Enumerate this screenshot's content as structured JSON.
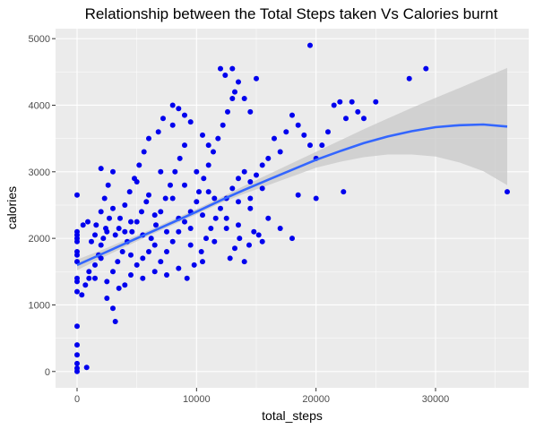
{
  "chart_data": {
    "type": "scatter",
    "title": "Relationship between the Total Steps taken Vs Calories burnt",
    "xlabel": "total_steps",
    "ylabel": "calories",
    "xlim": [
      -1800,
      37800
    ],
    "ylim": [
      -245,
      5150
    ],
    "xticks": [
      0,
      10000,
      20000,
      30000
    ],
    "xtick_labels": [
      "0",
      "10000",
      "20000",
      "30000"
    ],
    "yticks": [
      0,
      1000,
      2000,
      3000,
      4000,
      5000
    ],
    "ytick_labels": [
      "0",
      "1000",
      "2000",
      "3000",
      "4000",
      "5000"
    ],
    "grid": true,
    "legend": "none",
    "colors": {
      "panel": "#ebebeb",
      "grid_major": "#ffffff",
      "points": "#0000ee",
      "smooth_line": "#3366ff",
      "confidence_band": "#c8c8c8"
    },
    "points": [
      [
        0,
        0
      ],
      [
        0,
        50
      ],
      [
        0,
        120
      ],
      [
        0,
        250
      ],
      [
        0,
        400
      ],
      [
        0,
        680
      ],
      [
        0,
        1200
      ],
      [
        0,
        1350
      ],
      [
        0,
        1400
      ],
      [
        0,
        1650
      ],
      [
        0,
        1750
      ],
      [
        0,
        1800
      ],
      [
        0,
        1950
      ],
      [
        0,
        2000
      ],
      [
        0,
        2050
      ],
      [
        0,
        2100
      ],
      [
        0,
        2650
      ],
      [
        800,
        60
      ],
      [
        400,
        1150
      ],
      [
        700,
        1300
      ],
      [
        1000,
        1400
      ],
      [
        1500,
        1600
      ],
      [
        1800,
        1750
      ],
      [
        2000,
        1900
      ],
      [
        2200,
        2000
      ],
      [
        2400,
        2150
      ],
      [
        2700,
        2300
      ],
      [
        500,
        2200
      ],
      [
        900,
        2250
      ],
      [
        1200,
        1950
      ],
      [
        1600,
        2200
      ],
      [
        2000,
        2400
      ],
      [
        2300,
        2600
      ],
      [
        2600,
        2800
      ],
      [
        3000,
        3000
      ],
      [
        2000,
        3050
      ],
      [
        3000,
        1500
      ],
      [
        3400,
        1650
      ],
      [
        3800,
        1800
      ],
      [
        4200,
        1950
      ],
      [
        4600,
        2100
      ],
      [
        5000,
        2250
      ],
      [
        5400,
        2400
      ],
      [
        5800,
        2550
      ],
      [
        3200,
        2050
      ],
      [
        3600,
        2300
      ],
      [
        4000,
        2500
      ],
      [
        4400,
        2700
      ],
      [
        4800,
        2900
      ],
      [
        5200,
        3100
      ],
      [
        5600,
        3300
      ],
      [
        6000,
        3500
      ],
      [
        2500,
        1100
      ],
      [
        3000,
        950
      ],
      [
        3200,
        750
      ],
      [
        4000,
        1300
      ],
      [
        4500,
        1450
      ],
      [
        5000,
        1600
      ],
      [
        5500,
        1700
      ],
      [
        6000,
        1800
      ],
      [
        6200,
        2000
      ],
      [
        6600,
        2200
      ],
      [
        7000,
        2400
      ],
      [
        7400,
        2600
      ],
      [
        7800,
        2800
      ],
      [
        8200,
        3000
      ],
      [
        8600,
        3200
      ],
      [
        9000,
        3400
      ],
      [
        6500,
        1500
      ],
      [
        7000,
        1650
      ],
      [
        7500,
        1800
      ],
      [
        8000,
        1950
      ],
      [
        8500,
        2100
      ],
      [
        9000,
        2250
      ],
      [
        9500,
        2400
      ],
      [
        10000,
        2550
      ],
      [
        6800,
        3600
      ],
      [
        7200,
        3800
      ],
      [
        8000,
        3700
      ],
      [
        8500,
        3950
      ],
      [
        9000,
        3850
      ],
      [
        9500,
        3750
      ],
      [
        10500,
        3550
      ],
      [
        11000,
        3400
      ],
      [
        8000,
        4000
      ],
      [
        9200,
        1400
      ],
      [
        9800,
        1600
      ],
      [
        10400,
        1800
      ],
      [
        10800,
        2000
      ],
      [
        11200,
        2150
      ],
      [
        11600,
        2300
      ],
      [
        12000,
        2450
      ],
      [
        10200,
        2700
      ],
      [
        10600,
        2900
      ],
      [
        11000,
        3100
      ],
      [
        11400,
        3300
      ],
      [
        11800,
        3500
      ],
      [
        12200,
        3700
      ],
      [
        12600,
        3900
      ],
      [
        13000,
        4100
      ],
      [
        12000,
        4550
      ],
      [
        12400,
        4450
      ],
      [
        13000,
        4550
      ],
      [
        13200,
        4200
      ],
      [
        13500,
        4350
      ],
      [
        14000,
        4100
      ],
      [
        15000,
        4400
      ],
      [
        14500,
        3900
      ],
      [
        12500,
        2600
      ],
      [
        13000,
        2750
      ],
      [
        13500,
        2900
      ],
      [
        14000,
        3000
      ],
      [
        14500,
        2850
      ],
      [
        15000,
        2950
      ],
      [
        15500,
        3100
      ],
      [
        16000,
        3200
      ],
      [
        12800,
        1700
      ],
      [
        13200,
        1850
      ],
      [
        13600,
        2000
      ],
      [
        14000,
        1650
      ],
      [
        14400,
        1900
      ],
      [
        14800,
        2100
      ],
      [
        15200,
        2050
      ],
      [
        15500,
        1950
      ],
      [
        16500,
        3500
      ],
      [
        17000,
        3300
      ],
      [
        17500,
        3600
      ],
      [
        18000,
        3850
      ],
      [
        18500,
        3700
      ],
      [
        19000,
        3550
      ],
      [
        19500,
        3400
      ],
      [
        20000,
        3200
      ],
      [
        16000,
        2300
      ],
      [
        17000,
        2150
      ],
      [
        18000,
        2000
      ],
      [
        18500,
        2650
      ],
      [
        19500,
        4900
      ],
      [
        20000,
        2600
      ],
      [
        20500,
        3400
      ],
      [
        21000,
        3600
      ],
      [
        21500,
        4000
      ],
      [
        22000,
        4050
      ],
      [
        22500,
        3800
      ],
      [
        22300,
        2700
      ],
      [
        23000,
        4050
      ],
      [
        23500,
        3900
      ],
      [
        24000,
        3800
      ],
      [
        25000,
        4050
      ],
      [
        27800,
        4400
      ],
      [
        29200,
        4550
      ],
      [
        36000,
        2700
      ],
      [
        1500,
        2050
      ],
      [
        2500,
        2100
      ],
      [
        3500,
        2150
      ],
      [
        4500,
        2250
      ],
      [
        5500,
        2050
      ],
      [
        6500,
        2350
      ],
      [
        7500,
        2100
      ],
      [
        8500,
        2300
      ],
      [
        9500,
        2150
      ],
      [
        10500,
        2350
      ],
      [
        11500,
        2600
      ],
      [
        12500,
        2300
      ],
      [
        13500,
        2550
      ],
      [
        14500,
        2450
      ],
      [
        7000,
        3000
      ],
      [
        8000,
        2600
      ],
      [
        9000,
        2800
      ],
      [
        10000,
        3000
      ],
      [
        11000,
        2700
      ],
      [
        6000,
        2650
      ],
      [
        5000,
        2850
      ],
      [
        4000,
        2100
      ],
      [
        3000,
        2450
      ],
      [
        2000,
        1700
      ],
      [
        1000,
        1500
      ],
      [
        1500,
        1400
      ],
      [
        2500,
        1350
      ],
      [
        3500,
        1250
      ],
      [
        4500,
        1750
      ],
      [
        5500,
        1400
      ],
      [
        6500,
        1900
      ],
      [
        7500,
        1450
      ],
      [
        8500,
        1550
      ],
      [
        9500,
        1900
      ],
      [
        10500,
        1650
      ],
      [
        11500,
        1950
      ],
      [
        12500,
        2150
      ],
      [
        13500,
        2200
      ],
      [
        14500,
        2600
      ],
      [
        15500,
        2750
      ]
    ],
    "smooth_line": {
      "x": [
        0,
        2000,
        4000,
        6000,
        8000,
        10000,
        12000,
        14000,
        16000,
        18000,
        20000,
        22000,
        24000,
        26000,
        28000,
        30000,
        32000,
        34000,
        36000
      ],
      "y": [
        1600,
        1760,
        1920,
        2080,
        2240,
        2400,
        2570,
        2730,
        2880,
        3030,
        3180,
        3310,
        3430,
        3530,
        3610,
        3670,
        3700,
        3710,
        3680
      ],
      "band_upper": [
        1680,
        1820,
        1970,
        2120,
        2280,
        2440,
        2610,
        2790,
        2960,
        3130,
        3300,
        3470,
        3640,
        3800,
        3960,
        4110,
        4260,
        4410,
        4560
      ],
      "band_lower": [
        1520,
        1700,
        1870,
        2040,
        2200,
        2360,
        2530,
        2670,
        2800,
        2930,
        3060,
        3150,
        3220,
        3260,
        3260,
        3230,
        3140,
        3010,
        2800
      ]
    }
  }
}
